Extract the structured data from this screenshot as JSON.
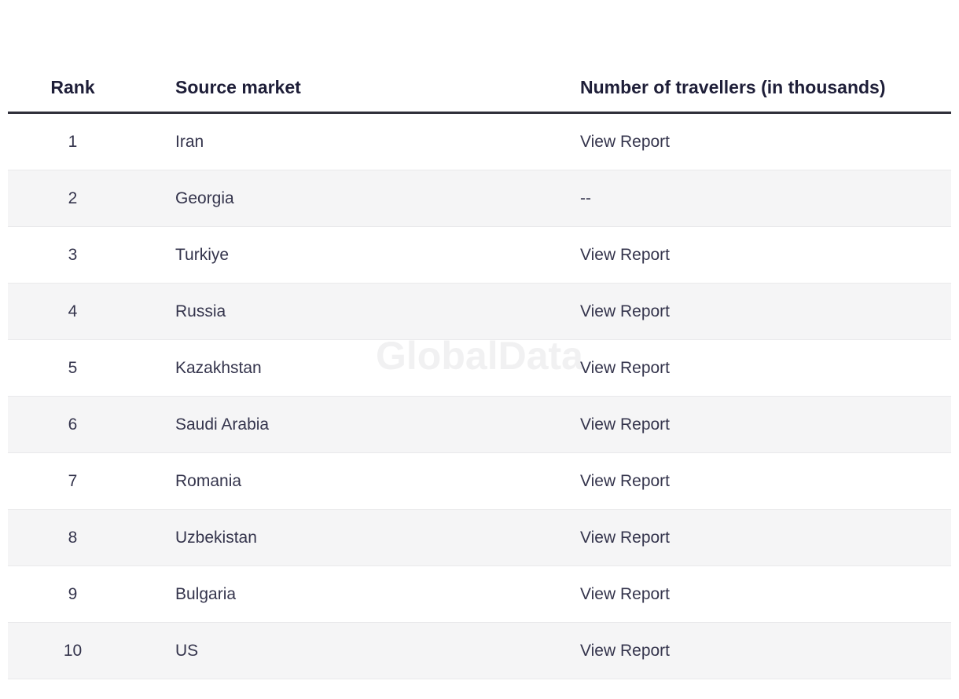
{
  "watermark_text": "GlobalData",
  "colors": {
    "header_text": "#1e1e38",
    "body_text": "#34344c",
    "header_rule": "#2f2f3a",
    "stripe_row": "#f5f5f6",
    "row_divider": "#e9e9eb",
    "watermark": "#f1f1f2"
  },
  "table": {
    "columns": [
      {
        "label": "Rank"
      },
      {
        "label": "Source market"
      },
      {
        "label": "Number of travellers (in thousands)"
      }
    ],
    "rows": [
      {
        "rank": "1",
        "market": "Iran",
        "value": "View Report",
        "is_link": true
      },
      {
        "rank": "2",
        "market": "Georgia",
        "value": "--",
        "is_link": false
      },
      {
        "rank": "3",
        "market": "Turkiye",
        "value": "View Report",
        "is_link": true
      },
      {
        "rank": "4",
        "market": "Russia",
        "value": "View Report",
        "is_link": true
      },
      {
        "rank": "5",
        "market": "Kazakhstan",
        "value": "View Report",
        "is_link": true
      },
      {
        "rank": "6",
        "market": "Saudi Arabia",
        "value": "View Report",
        "is_link": true
      },
      {
        "rank": "7",
        "market": "Romania",
        "value": "View Report",
        "is_link": true
      },
      {
        "rank": "8",
        "market": "Uzbekistan",
        "value": "View Report",
        "is_link": true
      },
      {
        "rank": "9",
        "market": "Bulgaria",
        "value": "View Report",
        "is_link": true
      },
      {
        "rank": "10",
        "market": "US",
        "value": "View Report",
        "is_link": true
      }
    ]
  }
}
